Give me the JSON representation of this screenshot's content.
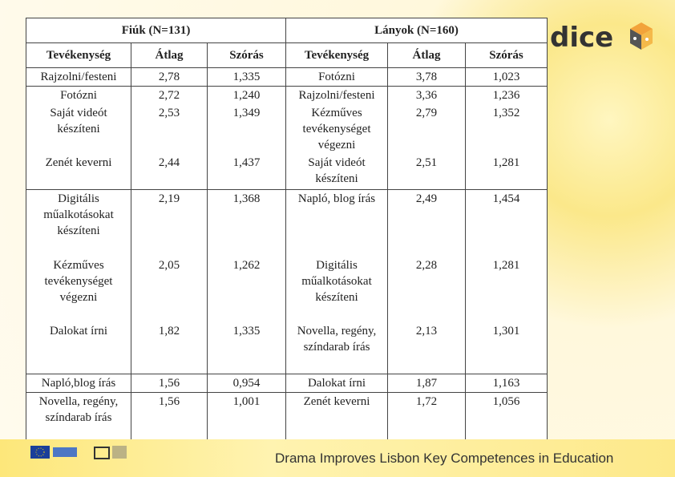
{
  "table": {
    "groups": [
      "Fiúk (N=131)",
      "Lányok (N=160)"
    ],
    "columns": [
      "Tevékenység",
      "Átlag",
      "Szórás",
      "Tevékenység",
      "Átlag",
      "Szórás"
    ],
    "rows": [
      [
        "Rajzolni/festeni",
        "2,78",
        "1,335",
        "Fotózni",
        "3,78",
        "1,023"
      ],
      [
        "Fotózni",
        "2,72",
        "1,240",
        "Rajzolni/festeni",
        "3,36",
        "1,236"
      ],
      [
        "Saját videót készíteni",
        "2,53",
        "1,349",
        "Kézműves tevékenységet végezni",
        "2,79",
        "1,352"
      ],
      [
        "Zenét keverni",
        "2,44",
        "1,437",
        "Saját videót készíteni",
        "2,51",
        "1,281"
      ],
      [
        "Digitális műalkotásokat készíteni",
        "2,19",
        "1,368",
        "Napló, blog írás",
        "2,49",
        "1,454"
      ],
      [
        "Kézműves tevékenységet végezni",
        "2,05",
        "1,262",
        "Digitális műalkotásokat készíteni",
        "2,28",
        "1,281"
      ],
      [
        "Dalokat írni",
        "1,82",
        "1,335",
        "Novella, regény, színdarab írás",
        "2,13",
        "1,301"
      ],
      [
        "Napló,blog írás",
        "1,56",
        "0,954",
        "Dalokat írni",
        "1,87",
        "1,163"
      ],
      [
        "Novella, regény, színdarab írás",
        "1,56",
        "1,001",
        "Zenét keverni",
        "1,72",
        "1,056"
      ]
    ]
  },
  "logo": "dice",
  "footer": "Drama Improves Lisbon Key Competences in Education"
}
